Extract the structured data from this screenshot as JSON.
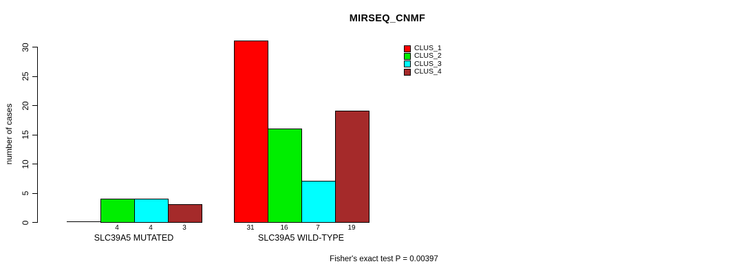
{
  "chart_data": {
    "type": "bar",
    "title": "MIRSEQ_CNMF",
    "xlabel": "",
    "ylabel": "number of cases",
    "categories": [
      "SLC39A5 MUTATED",
      "SLC39A5 WILD-TYPE"
    ],
    "series": [
      {
        "name": "CLUS_1",
        "color": "#FF0000",
        "values": [
          0,
          31
        ]
      },
      {
        "name": "CLUS_2",
        "color": "#00EE00",
        "values": [
          4,
          16
        ]
      },
      {
        "name": "CLUS_3",
        "color": "#00FFFF",
        "values": [
          4,
          7
        ]
      },
      {
        "name": "CLUS_4",
        "color": "#A52A2A",
        "values": [
          3,
          19
        ]
      }
    ],
    "bar_labels": [
      [
        null,
        4,
        4,
        3
      ],
      [
        31,
        16,
        7,
        19
      ]
    ],
    "yticks": [
      0,
      5,
      10,
      15,
      20,
      25,
      30
    ],
    "ylim": [
      0,
      31
    ],
    "grid": false,
    "legend_position": "upper-center",
    "annotation": "Fisher's exact test P = 0.00397"
  },
  "colors": {
    "background": "#FFFFFF",
    "axis": "#000000",
    "text": "#000000"
  }
}
